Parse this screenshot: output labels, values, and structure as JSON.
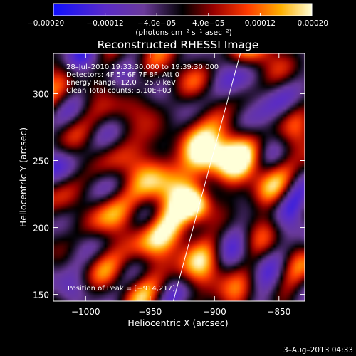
{
  "chart_data": {
    "type": "heatmap",
    "title": "Reconstructed RHESSI Image",
    "xlabel": "Heliocentric X (arcsec)",
    "ylabel": "Heliocentric Y (arcsec)",
    "xlim": [
      -1025,
      -830
    ],
    "ylim": [
      145,
      330
    ],
    "xticks": [
      -1000,
      -950,
      -900,
      -850
    ],
    "yticks": [
      150,
      200,
      250,
      300
    ],
    "xtick_labels": [
      "−1000",
      "−950",
      "−900",
      "−850"
    ],
    "ytick_labels": [
      "150",
      "200",
      "250",
      "300"
    ],
    "colorbar": {
      "range": [
        -0.0002,
        0.0002
      ],
      "ticks": [
        -0.0002,
        -0.00012,
        -4e-05,
        4e-05,
        0.00012,
        0.0002
      ],
      "tick_labels": [
        "−0.00020",
        "−0.00012",
        "−4.0e−05",
        "4.0e−05",
        "0.00012",
        "0.00020"
      ],
      "unit_text": "(photons cm⁻² s⁻¹ asec⁻²)"
    },
    "info_lines": [
      "28–Jul–2010 19:33:30.000 to 19:39:30.000",
      "Detectors: 4F 5F 6F 7F 8F, Att 0",
      "Energy Range: 12.0 – 25.0 keV",
      "Clean    Total counts: 5.10E+03"
    ],
    "peak_label": "Position of Peak = [−914,217]",
    "peak": [
      -914,
      217
    ],
    "limb_line": [
      [
        -932,
        145
      ],
      [
        -880,
        330
      ]
    ],
    "sources": [
      {
        "x": -914,
        "y": 217,
        "amp": 1.0,
        "sigma": 9
      },
      {
        "x": -910,
        "y": 255,
        "amp": 0.85,
        "sigma": 11
      },
      {
        "x": -920,
        "y": 235,
        "amp": 0.6,
        "sigma": 18
      },
      {
        "x": -935,
        "y": 200,
        "amp": 0.55,
        "sigma": 16
      },
      {
        "x": -955,
        "y": 185,
        "amp": 0.45,
        "sigma": 14
      },
      {
        "x": -975,
        "y": 215,
        "amp": 0.4,
        "sigma": 12
      },
      {
        "x": -960,
        "y": 240,
        "amp": 0.35,
        "sigma": 14
      },
      {
        "x": -890,
        "y": 270,
        "amp": 0.45,
        "sigma": 12
      },
      {
        "x": -870,
        "y": 250,
        "amp": 0.35,
        "sigma": 12
      },
      {
        "x": -880,
        "y": 200,
        "amp": 0.35,
        "sigma": 12
      },
      {
        "x": -990,
        "y": 170,
        "amp": 0.3,
        "sigma": 12
      },
      {
        "x": -940,
        "y": 165,
        "amp": 0.4,
        "sigma": 12
      },
      {
        "x": -1005,
        "y": 255,
        "amp": 0.2,
        "sigma": 12
      },
      {
        "x": -945,
        "y": 290,
        "amp": 0.3,
        "sigma": 12
      },
      {
        "x": -880,
        "y": 305,
        "amp": 0.3,
        "sigma": 10
      },
      {
        "x": -855,
        "y": 225,
        "amp": 0.25,
        "sigma": 10
      },
      {
        "x": -1015,
        "y": 205,
        "amp": -0.25,
        "sigma": 18
      },
      {
        "x": -845,
        "y": 165,
        "amp": -0.3,
        "sigma": 20
      },
      {
        "x": -1010,
        "y": 310,
        "amp": -0.25,
        "sigma": 18
      },
      {
        "x": -850,
        "y": 315,
        "amp": -0.2,
        "sigma": 14
      }
    ]
  },
  "footer_date": "3–Aug–2013 04:33"
}
